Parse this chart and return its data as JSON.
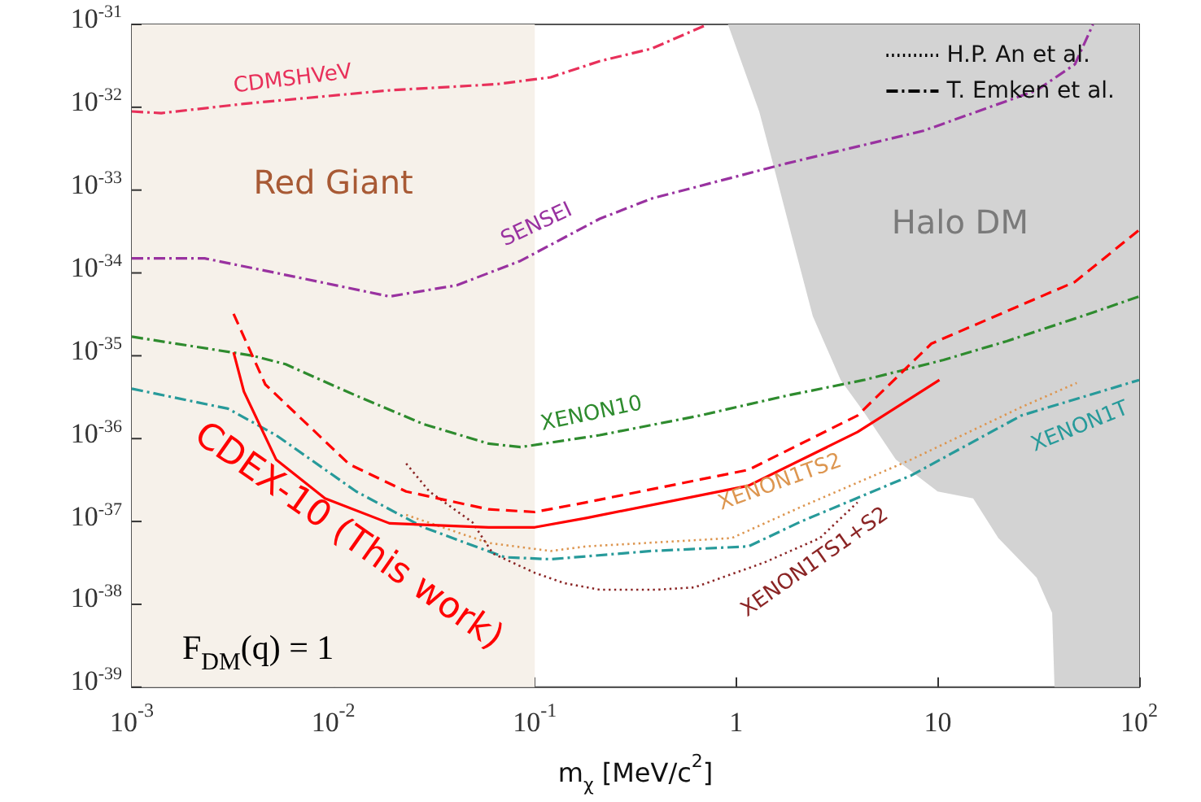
{
  "chart_data": {
    "type": "line",
    "xlabel": "m$_{χ}$ [MeV/c$^{2}$]",
    "log": "xy",
    "xlim": [
      0.001,
      100
    ],
    "ylim": [
      1e-39,
      1e-31
    ],
    "xticks": [
      {
        "value": 0.001,
        "label": "10$^{-3}$"
      },
      {
        "value": 0.01,
        "label": "10$^{-2}$"
      },
      {
        "value": 0.1,
        "label": "10$^{-1}$"
      },
      1,
      10,
      {
        "value": 100,
        "label": "10$^{2}$"
      }
    ],
    "yticks": [
      {
        "value": 1e-39,
        "label": "10$^{-39}$"
      },
      {
        "value": 1e-38,
        "label": "10$^{-38}$"
      },
      {
        "value": 1e-37,
        "label": "10$^{-37}$"
      },
      {
        "value": 1e-36,
        "label": "10$^{-36}$"
      },
      {
        "value": 1e-35,
        "label": "10$^{-35}$"
      },
      {
        "value": 1e-34,
        "label": "10$^{-34}$"
      },
      {
        "value": 1e-33,
        "label": "10$^{-33}$"
      },
      {
        "value": 1e-32,
        "label": "10$^{-32}$"
      },
      {
        "value": 1e-31,
        "label": "10$^{-31}$"
      }
    ],
    "grid": false,
    "legend": "top right",
    "annotations": [
      "F$_{DM}$(q) = 1"
    ],
    "bands": [
      {
        "axis": "x",
        "from": 0.001,
        "to": 0.1,
        "label": "Red Giant",
        "color": "#f6f1ea"
      }
    ],
    "series": [
      {
        "name": "CDMSHVeV",
        "color": "#e8305a",
        "line_style": "dashdot",
        "x": [
          0.001,
          0.0014,
          0.0036,
          0.019,
          0.065,
          0.12,
          0.21,
          0.38,
          0.72
        ],
        "values": [
          8.9e-33,
          8.5e-33,
          1.1e-32,
          1.6e-32,
          1.9e-32,
          2.3e-32,
          3.6e-32,
          5.1e-32,
          1e-31
        ]
      },
      {
        "name": "SENSEI",
        "color": "#9932a0",
        "line_style": "dashdot",
        "x": [
          0.001,
          0.0023,
          0.0052,
          0.019,
          0.041,
          0.085,
          0.21,
          0.38,
          1.78,
          8.5,
          31,
          48,
          59
        ],
        "values": [
          1.5e-34,
          1.5e-34,
          1e-34,
          5.2e-35,
          7.1e-35,
          1.4e-34,
          4.5e-34,
          7.9e-34,
          2.1e-33,
          5.2e-33,
          1.6e-32,
          3.3e-32,
          1e-31
        ]
      },
      {
        "name": "XENON10",
        "color": "#2e8b2e",
        "line_style": "dashdot",
        "x": [
          0.001,
          0.004,
          0.0058,
          0.013,
          0.028,
          0.059,
          0.085,
          0.21,
          0.66,
          1.78,
          4.3,
          10.7,
          22,
          52,
          100
        ],
        "values": [
          1.7e-35,
          1e-35,
          7.9e-36,
          3.3e-36,
          1.5e-36,
          8.7e-37,
          7.9e-37,
          1.1e-36,
          1.9e-36,
          3.3e-36,
          5.1e-36,
          8.9e-36,
          1.5e-35,
          3e-35,
          5.2e-35
        ]
      },
      {
        "name": "XENON1T",
        "color": "#279a9a",
        "line_style": "dashdot",
        "x": [
          0.001,
          0.003,
          0.0052,
          0.013,
          0.028,
          0.071,
          0.12,
          0.38,
          1.15,
          2.1,
          7.4,
          26,
          100
        ],
        "values": [
          4e-36,
          2.3e-36,
          1.1e-36,
          2.3e-37,
          8.5e-38,
          3.7e-38,
          3.5e-38,
          4.4e-38,
          5e-38,
          1e-37,
          3.6e-37,
          1.9e-36,
          5.1e-36
        ]
      },
      {
        "name": "XENON1TS2",
        "color": "#dd9650",
        "line_style": "dotted",
        "x": [
          0.023,
          0.059,
          0.12,
          0.18,
          0.95,
          2.1,
          7.4,
          26,
          49
        ],
        "values": [
          1.2e-37,
          5.5e-38,
          4.4e-38,
          5e-38,
          6.3e-38,
          1.5e-37,
          5.6e-37,
          2.4e-36,
          4.7e-36
        ]
      },
      {
        "name": "XENON1TS1+S2",
        "color": "#8b2525",
        "line_style": "dotted",
        "x": [
          0.023,
          0.03,
          0.049,
          0.062,
          0.1,
          0.14,
          0.21,
          0.4,
          0.62,
          1.38,
          2.6,
          4.0
        ],
        "values": [
          5e-37,
          2.3e-37,
          9.8e-38,
          4.1e-38,
          2.4e-38,
          1.8e-38,
          1.5e-38,
          1.5e-38,
          1.6e-38,
          3.2e-38,
          6.3e-38,
          1.7e-37
        ]
      },
      {
        "name": "CDEX-10 (This work)",
        "color": "#ff0000",
        "line_style": "solid",
        "x": [
          0.0032,
          0.0036,
          0.0052,
          0.0091,
          0.019,
          0.059,
          0.1,
          0.18,
          1.15,
          4.0,
          10.2
        ],
        "values": [
          1.1e-35,
          3.7e-36,
          5.6e-37,
          1.9e-37,
          9.5e-38,
          8.5e-38,
          8.5e-38,
          1.1e-37,
          2.7e-37,
          1.2e-36,
          5.1e-36
        ]
      },
      {
        "color": "#ff0000",
        "line_style": "dashed",
        "x": [
          0.0032,
          0.0046,
          0.012,
          0.023,
          0.059,
          0.1,
          0.18,
          1.15,
          4.0,
          9.3,
          48,
          100
        ],
        "values": [
          3.2e-35,
          4.5e-36,
          4.9e-37,
          2.3e-37,
          1.4e-37,
          1.3e-37,
          1.7e-37,
          4.2e-37,
          1.9e-36,
          1.4e-35,
          7.8e-35,
          3.3e-34
        ]
      },
      {
        "name": "Halo DM",
        "type": "area",
        "color": "#d3d3d3",
        "x": [
          0.91,
          1.3,
          1.5,
          1.9,
          2.4,
          3.3,
          4.3,
          6.2,
          10,
          15,
          20,
          31,
          37,
          38,
          100,
          100
        ],
        "values": [
          1e-31,
          8.9e-33,
          2.4e-33,
          2.6e-34,
          3e-35,
          5.1e-36,
          2.1e-36,
          5.6e-37,
          2.3e-37,
          1.9e-37,
          6.3e-38,
          2.1e-38,
          7.9e-39,
          1e-39,
          1e-39,
          1e-31
        ]
      },
      {
        "name": "H.P. An et al.",
        "color": "#000000",
        "line_style": "dotted"
      },
      {
        "name": "T. Emken et al.",
        "color": "#000000",
        "line_style": "dashdot"
      }
    ]
  }
}
